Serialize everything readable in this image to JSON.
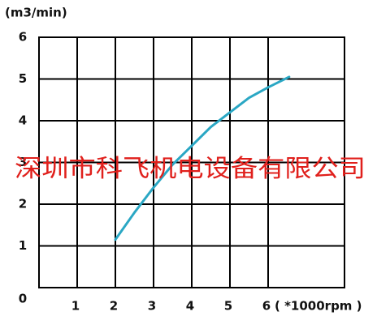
{
  "chart_data": {
    "type": "line",
    "y_label": "(m3/min)",
    "x_label": "( *1000rpm )",
    "watermark": "深圳市科飞机电设备有限公司",
    "x": [
      2,
      2.5,
      3,
      3.5,
      4,
      4.5,
      5,
      5.5,
      6,
      6.55
    ],
    "series": [
      {
        "color": "#2aa7c4",
        "values": [
          1.15,
          1.8,
          2.4,
          2.95,
          3.4,
          3.85,
          4.2,
          4.55,
          4.8,
          5.05
        ]
      }
    ],
    "xlim": [
      0,
      8
    ],
    "ylim": [
      0,
      6
    ],
    "xticks": [
      1,
      2,
      3,
      4,
      5,
      6
    ],
    "yticks": [
      0,
      1,
      2,
      3,
      4,
      5,
      6
    ],
    "grid": true
  }
}
